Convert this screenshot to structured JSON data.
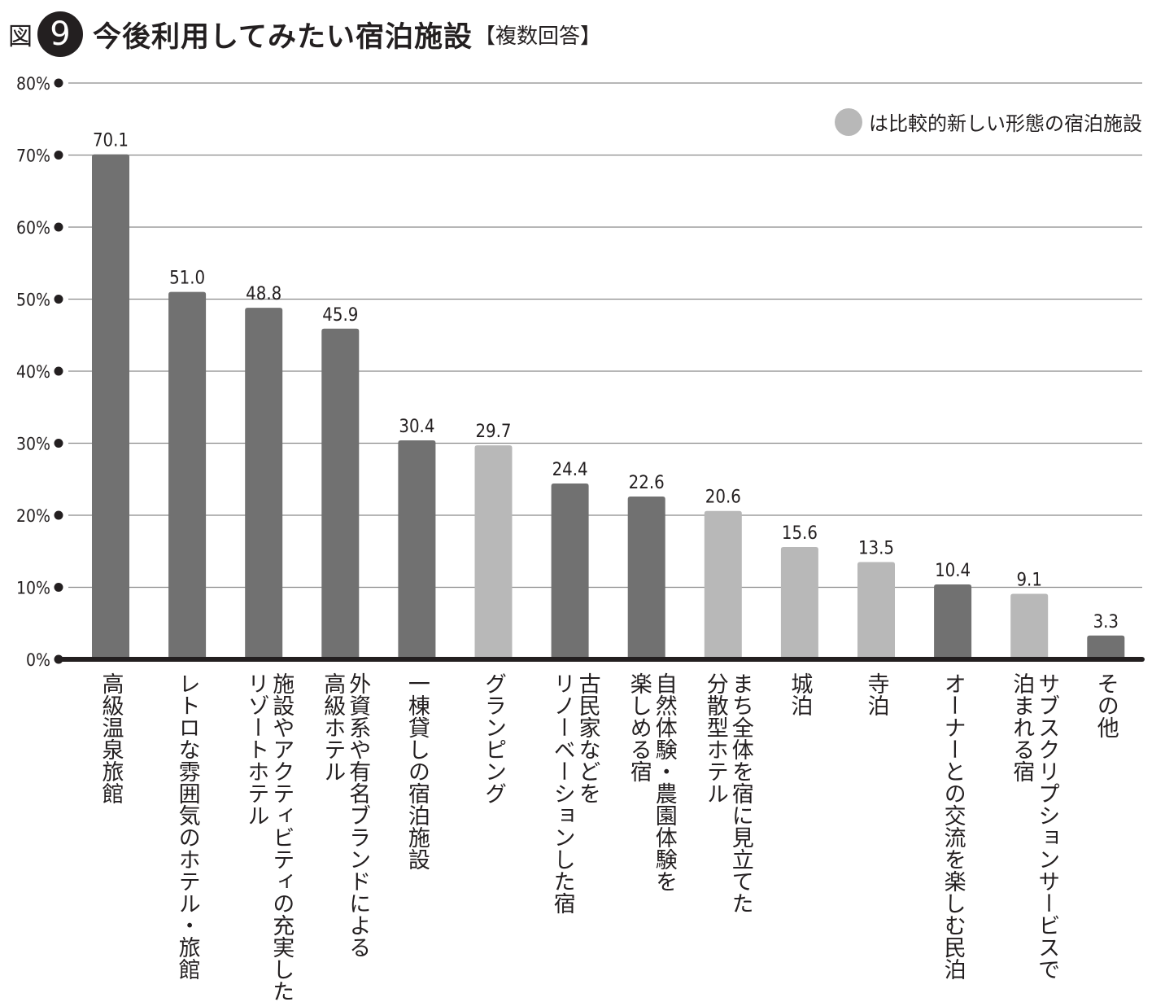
{
  "header": {
    "fig_label": "図",
    "fig_number": "9",
    "title": "今後利用してみたい宿泊施設",
    "note": "【複数回答】"
  },
  "legend": {
    "text": "は比較的新しい形態の宿泊施設",
    "color": "#b8b8b8"
  },
  "colors": {
    "dark": "#717171",
    "light": "#b8b8b8",
    "axis": "#231f20"
  },
  "chart_data": {
    "type": "bar",
    "title": "今後利用してみたい宿泊施設",
    "ylim": [
      0,
      80
    ],
    "yticks": [
      "0%",
      "10%",
      "20%",
      "30%",
      "40%",
      "50%",
      "60%",
      "70%",
      "80%"
    ],
    "grid": true,
    "categories": [
      "高級温泉旅館",
      "レトロな雰囲気のホテル・旅館",
      "施設やアクティビティの充実した\nリゾートホテル",
      "外資系や有名ブランドによる\n高級ホテル",
      "一棟貸しの宿泊施設",
      "グランピング",
      "古民家などを\nリノーベーションした宿",
      "自然体験・農園体験を\n楽しめる宿",
      "まち全体を宿に見立てた\n分散型ホテル",
      "城泊",
      "寺泊",
      "オーナーとの交流を楽しむ民泊",
      "サブスクリプションサービスで\n泊まれる宿",
      "その他"
    ],
    "values": [
      70.1,
      51.0,
      48.8,
      45.9,
      30.4,
      29.7,
      24.4,
      22.6,
      20.6,
      15.6,
      13.5,
      10.4,
      9.1,
      3.3
    ],
    "value_labels": [
      "70.1",
      "51.0",
      "48.8",
      "45.9",
      "30.4",
      "29.7",
      "24.4",
      "22.6",
      "20.6",
      "15.6",
      "13.5",
      "10.4",
      "9.1",
      "3.3"
    ],
    "is_new_type": [
      false,
      false,
      false,
      false,
      false,
      true,
      false,
      false,
      true,
      true,
      true,
      false,
      true,
      false
    ]
  }
}
